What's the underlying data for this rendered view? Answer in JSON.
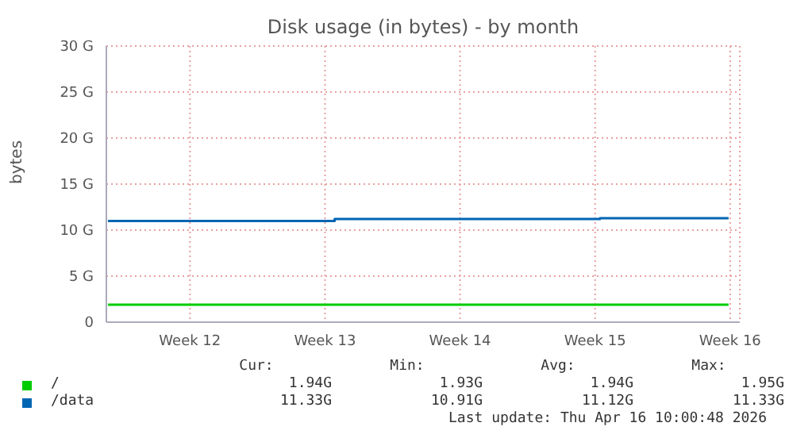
{
  "chart_data": {
    "type": "step",
    "title": "Disk usage (in bytes) - by month",
    "ylabel": "bytes",
    "xlim": [
      "2026-03-15T04:00",
      "2026-04-17T00:00"
    ],
    "xticks": [
      {
        "value": "2026-03-19T12:00",
        "label": "Week 12"
      },
      {
        "value": "2026-03-26T12:00",
        "label": "Week 13"
      },
      {
        "value": "2026-04-02T12:00",
        "label": "Week 14"
      },
      {
        "value": "2026-04-09T12:00",
        "label": "Week 15"
      },
      {
        "value": "2026-04-16T12:00",
        "label": "Week 16"
      }
    ],
    "ylim": [
      0,
      30
    ],
    "yticks": [
      {
        "value": 0,
        "label": "0"
      },
      {
        "value": 5,
        "label": "5 G"
      },
      {
        "value": 10,
        "label": "10 G"
      },
      {
        "value": 15,
        "label": "15 G"
      },
      {
        "value": 20,
        "label": "20 G"
      },
      {
        "value": 25,
        "label": "25 G"
      },
      {
        "value": 30,
        "label": "30 G"
      }
    ],
    "grid": true,
    "legend": "bottom",
    "series": [
      {
        "name": "/",
        "color": "#00cc00",
        "x": [
          "2026-03-15T06:00",
          "2026-04-16T10:00"
        ],
        "values": [
          1.9,
          1.9
        ]
      },
      {
        "name": "/data",
        "color": "#0066b3",
        "x": [
          "2026-03-15T06:00",
          "2026-03-27T00:00",
          "2026-04-09T18:00",
          "2026-04-16T10:00"
        ],
        "values": [
          11.0,
          11.2,
          11.3,
          11.3
        ]
      }
    ],
    "annotations": [
      "Cur:",
      "Min:",
      "Avg:",
      "Max:",
      "1.94G",
      "1.93G",
      "1.94G",
      "1.95G",
      "11.33G",
      "10.91G",
      "11.12G",
      "11.33G",
      "Last update: Thu Apr 16 10:00:48 2026"
    ]
  }
}
